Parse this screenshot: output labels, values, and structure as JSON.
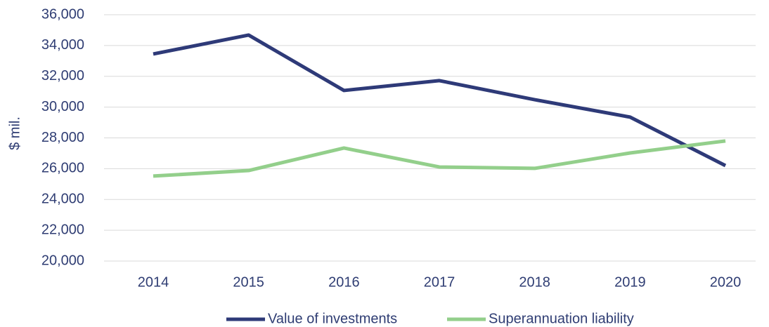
{
  "chart_data": {
    "type": "line",
    "y_label": "$ mil.",
    "categories": [
      "2014",
      "2015",
      "2016",
      "2017",
      "2018",
      "2019",
      "2020"
    ],
    "series": [
      {
        "name": "Value of investments",
        "color": "#2e3a78",
        "values": [
          33450,
          34680,
          31080,
          31720,
          30480,
          29350,
          26200
        ]
      },
      {
        "name": "Superannuation liability",
        "color": "#93cf8b",
        "values": [
          25520,
          25880,
          27340,
          26110,
          26020,
          27020,
          27800
        ]
      }
    ],
    "ylim": [
      20000,
      36000
    ],
    "yticks": [
      {
        "value": 20000,
        "label": "20,000"
      },
      {
        "value": 22000,
        "label": "22,000"
      },
      {
        "value": 24000,
        "label": "24,000"
      },
      {
        "value": 26000,
        "label": "26,000"
      },
      {
        "value": 28000,
        "label": "28,000"
      },
      {
        "value": 30000,
        "label": "30,000"
      },
      {
        "value": 32000,
        "label": "32,000"
      },
      {
        "value": 34000,
        "label": "34,000"
      },
      {
        "value": 36000,
        "label": "36,000"
      }
    ],
    "grid": true,
    "legend": "bottom"
  }
}
